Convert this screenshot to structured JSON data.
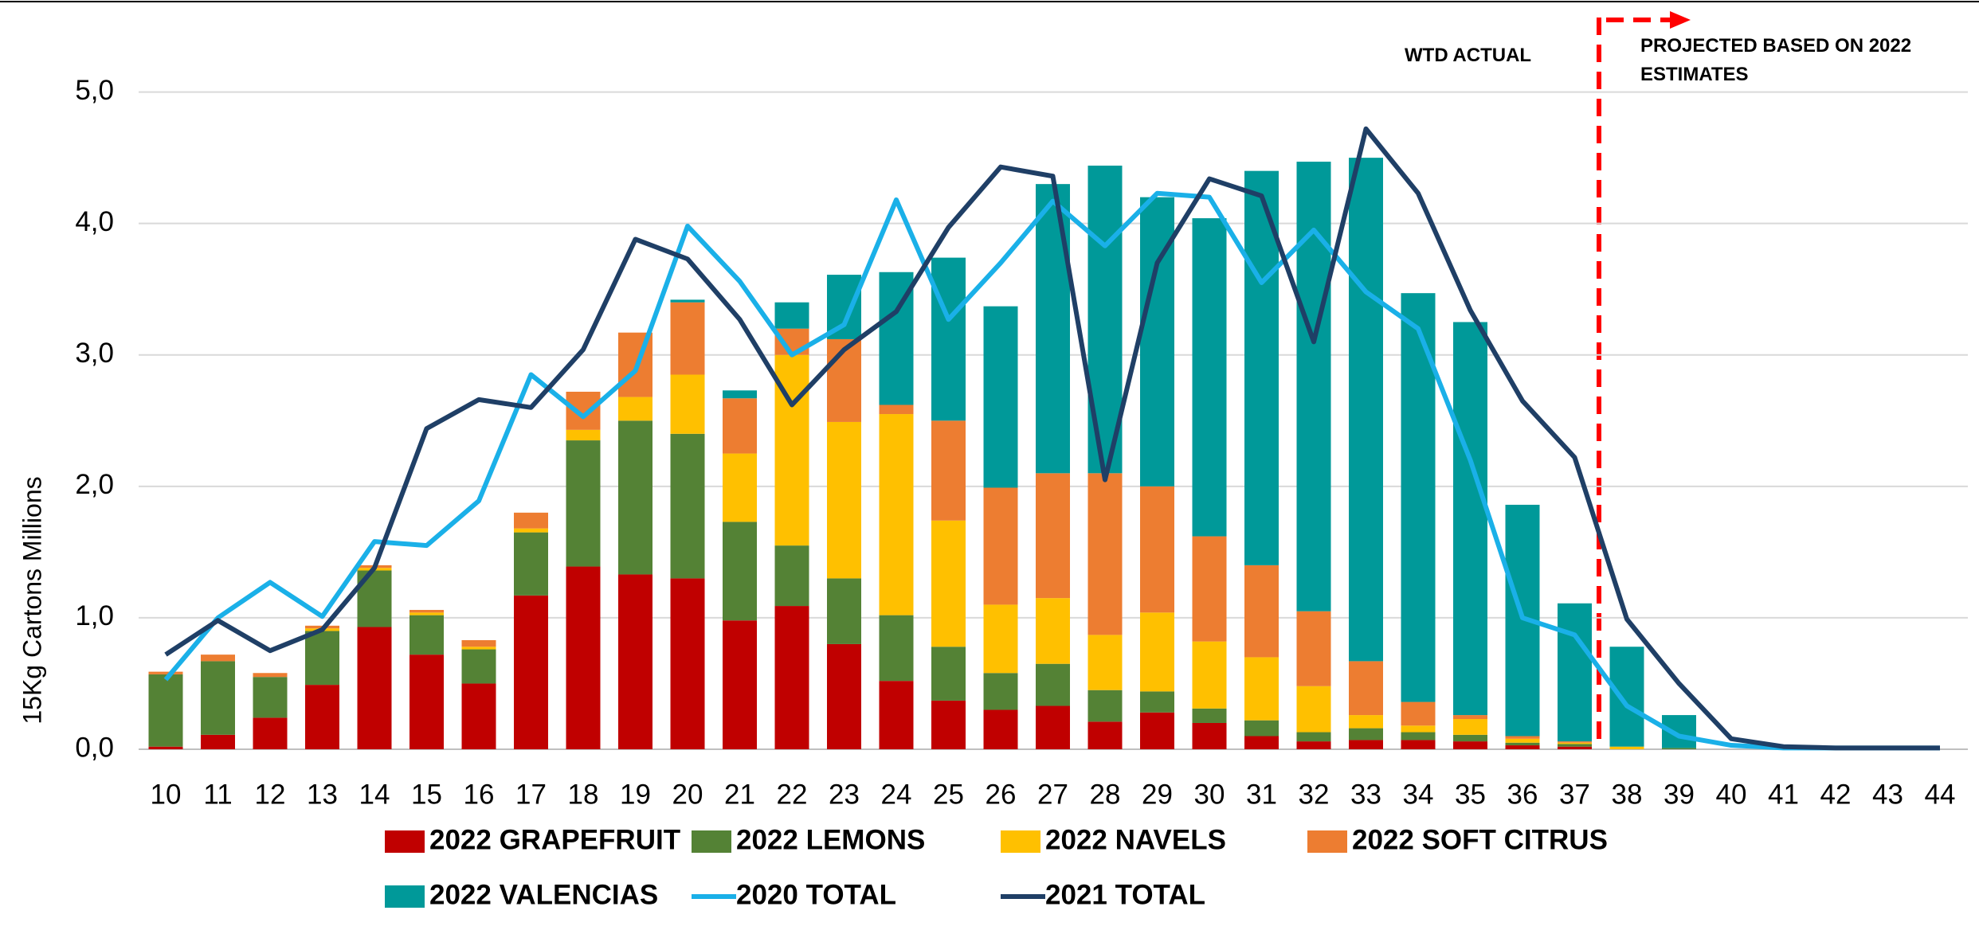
{
  "chart_data": {
    "type": "bar",
    "y_label": "15Kg Cartons Millions",
    "annotations": [
      "WTD ACTUAL",
      "PROJECTED BASED ON 2022 ESTIMATES"
    ],
    "categories": [
      "10",
      "11",
      "12",
      "13",
      "14",
      "15",
      "16",
      "17",
      "18",
      "19",
      "20",
      "21",
      "22",
      "23",
      "24",
      "25",
      "26",
      "27",
      "28",
      "29",
      "30",
      "31",
      "32",
      "33",
      "34",
      "35",
      "36",
      "37",
      "38",
      "39",
      "40",
      "41",
      "42",
      "43",
      "44"
    ],
    "ylim": [
      0,
      5.5
    ],
    "yticks": [
      {
        "value": 0,
        "label": "0,0"
      },
      {
        "value": 1,
        "label": "1,0"
      },
      {
        "value": 2,
        "label": "2,0"
      },
      {
        "value": 3,
        "label": "3,0"
      },
      {
        "value": 4,
        "label": "4,0"
      },
      {
        "value": 5,
        "label": "5,0"
      }
    ],
    "grid": true,
    "series": [
      {
        "name": "2022 GRAPEFRUIT",
        "type": "bar",
        "color": "#c00000",
        "values": [
          0.02,
          0.11,
          0.24,
          0.49,
          0.93,
          0.72,
          0.5,
          1.17,
          1.39,
          1.33,
          1.3,
          0.98,
          1.09,
          0.8,
          0.52,
          0.37,
          0.3,
          0.33,
          0.21,
          0.28,
          0.2,
          0.1,
          0.06,
          0.07,
          0.07,
          0.06,
          0.03,
          0.02,
          0,
          0,
          0,
          0,
          0,
          0,
          0
        ]
      },
      {
        "name": "2022 LEMONS",
        "type": "bar",
        "color": "#548235",
        "values": [
          0.55,
          0.56,
          0.31,
          0.41,
          0.43,
          0.3,
          0.26,
          0.48,
          0.96,
          1.17,
          1.1,
          0.75,
          0.46,
          0.5,
          0.5,
          0.41,
          0.28,
          0.32,
          0.24,
          0.16,
          0.11,
          0.12,
          0.07,
          0.09,
          0.06,
          0.05,
          0.02,
          0.02,
          0,
          0.01,
          0,
          0,
          0,
          0,
          0
        ]
      },
      {
        "name": "2022 NAVELS",
        "type": "bar",
        "color": "#ffc000",
        "values": [
          0,
          0,
          0,
          0.02,
          0.02,
          0.02,
          0.02,
          0.03,
          0.08,
          0.18,
          0.45,
          0.52,
          1.45,
          1.19,
          1.53,
          0.96,
          0.52,
          0.5,
          0.42,
          0.6,
          0.51,
          0.48,
          0.35,
          0.1,
          0.05,
          0.12,
          0.03,
          0.01,
          0.02,
          0,
          0,
          0,
          0,
          0,
          0
        ]
      },
      {
        "name": "2022 SOFT CITRUS",
        "type": "bar",
        "color": "#ed7d31",
        "values": [
          0.02,
          0.05,
          0.03,
          0.02,
          0.02,
          0.02,
          0.05,
          0.12,
          0.29,
          0.49,
          0.55,
          0.42,
          0.2,
          0.63,
          0.07,
          0.76,
          0.89,
          0.95,
          1.23,
          0.96,
          0.8,
          0.7,
          0.57,
          0.41,
          0.18,
          0.03,
          0.02,
          0.01,
          0,
          0,
          0,
          0,
          0,
          0,
          0
        ]
      },
      {
        "name": "2022 VALENCIAS",
        "type": "bar",
        "color": "#009999",
        "values": [
          0,
          0,
          0,
          0,
          0,
          0,
          0,
          0,
          0,
          0,
          0.02,
          0.06,
          0.2,
          0.49,
          1.01,
          1.24,
          1.38,
          2.2,
          2.34,
          2.2,
          2.42,
          3.0,
          3.42,
          3.83,
          3.11,
          2.99,
          1.76,
          1.05,
          0.76,
          0.25,
          0,
          0,
          0,
          0,
          0
        ]
      },
      {
        "name": "2020 TOTAL",
        "type": "line",
        "color": "#1ab0e8",
        "values": [
          0.53,
          1.0,
          1.27,
          1.01,
          1.58,
          1.55,
          1.89,
          2.85,
          2.53,
          2.88,
          3.98,
          3.56,
          3.0,
          3.23,
          4.18,
          3.27,
          3.7,
          4.17,
          3.83,
          4.23,
          4.2,
          3.55,
          3.95,
          3.48,
          3.2,
          2.2,
          1.0,
          0.87,
          0.33,
          0.1,
          0.03,
          0.01,
          0.01,
          0.01,
          0.01
        ]
      },
      {
        "name": "2021 TOTAL",
        "type": "line",
        "color": "#1f3f66",
        "values": [
          0.72,
          0.98,
          0.75,
          0.91,
          1.38,
          2.44,
          2.66,
          2.6,
          3.04,
          3.88,
          3.73,
          3.27,
          2.62,
          3.04,
          3.33,
          3.97,
          4.43,
          4.36,
          2.05,
          3.7,
          4.34,
          4.21,
          3.1,
          4.72,
          4.23,
          3.34,
          2.65,
          2.22,
          0.99,
          0.5,
          0.08,
          0.02,
          0.01,
          0.01,
          0.01
        ]
      }
    ]
  }
}
